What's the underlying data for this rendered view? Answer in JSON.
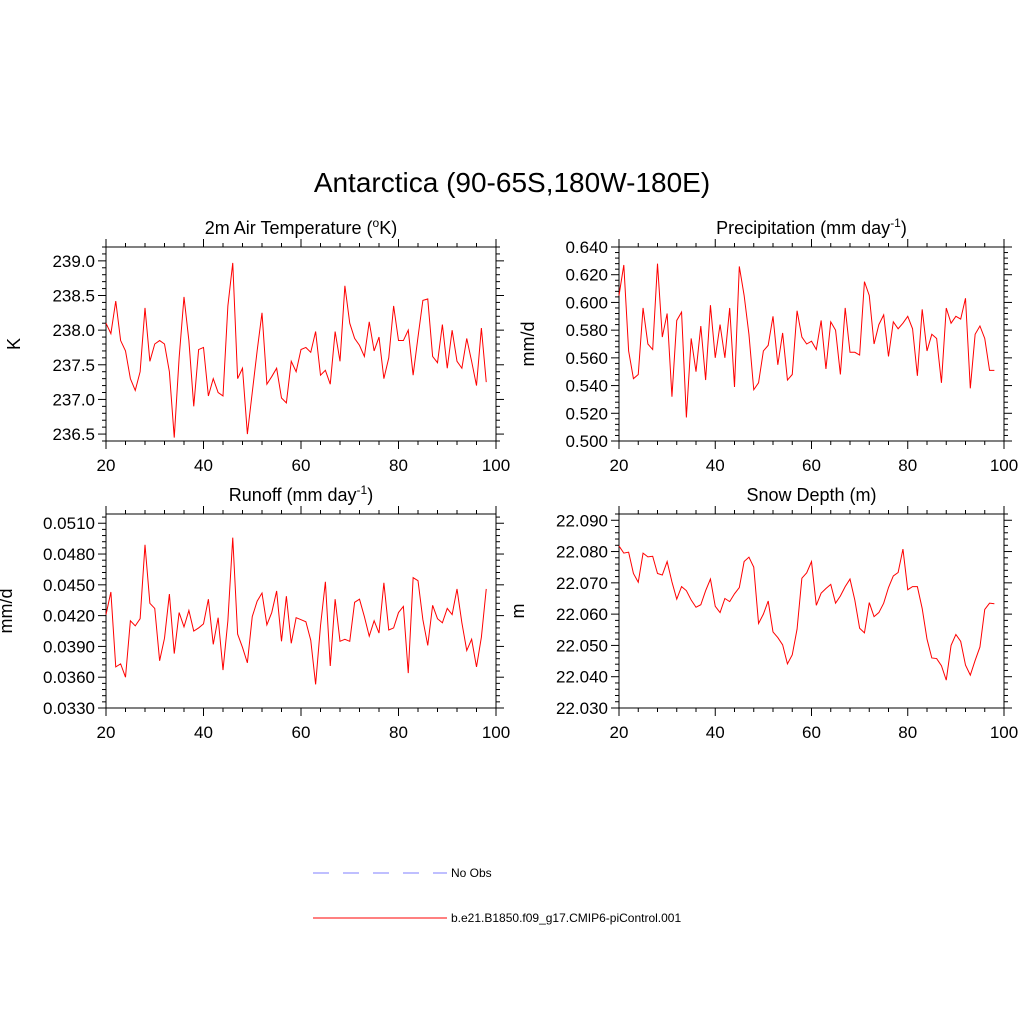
{
  "main_title": "Antarctica (90-65S,180W-180E)",
  "line_color": "#ff0000",
  "obs_color": "#9999ff",
  "legend": {
    "obs": "No Obs",
    "model": "b.e21.B1850.f09_g17.CMIP6-piControl.001"
  },
  "chart_data": [
    {
      "type": "line",
      "title": "2m Air Temperature (",
      "title_sup": "o",
      "title_after": "K)",
      "ylabel": "K",
      "xlabel": "",
      "xlim": [
        20,
        100
      ],
      "ylim": [
        236.4,
        239.2
      ],
      "xticks": [
        20,
        40,
        60,
        80,
        100
      ],
      "yticks": [
        "236.5",
        "237.0",
        "237.5",
        "238.0",
        "238.5",
        "239.0"
      ],
      "ytick_values": [
        236.5,
        237.0,
        237.5,
        238.0,
        238.5,
        239.0
      ],
      "x_start": 20,
      "values": [
        238.1,
        237.95,
        238.42,
        237.85,
        237.7,
        237.3,
        237.13,
        237.4,
        238.32,
        237.55,
        237.8,
        237.85,
        237.8,
        237.4,
        236.45,
        237.6,
        238.48,
        237.85,
        236.9,
        237.72,
        237.75,
        237.05,
        237.3,
        237.1,
        237.05,
        238.35,
        238.97,
        237.3,
        237.45,
        236.5,
        237.1,
        237.7,
        238.25,
        237.22,
        237.33,
        237.45,
        237.02,
        236.95,
        237.55,
        237.4,
        237.72,
        237.75,
        237.68,
        237.98,
        237.35,
        237.42,
        237.22,
        237.98,
        237.55,
        238.64,
        238.1,
        237.88,
        237.78,
        237.62,
        238.12,
        237.7,
        237.9,
        237.3,
        237.6,
        238.35,
        237.85,
        237.85,
        238.0,
        237.35,
        237.9,
        238.43,
        238.45,
        237.62,
        237.53,
        238.08,
        237.45,
        238.0,
        237.55,
        237.45,
        237.88,
        237.55,
        237.2,
        238.03,
        237.25
      ]
    },
    {
      "type": "line",
      "title": "Precipitation (mm day",
      "title_sup": "-1",
      "title_after": ")",
      "ylabel": "mm/d",
      "xlabel": "",
      "xlim": [
        20,
        100
      ],
      "ylim": [
        0.5,
        0.64
      ],
      "xticks": [
        20,
        40,
        60,
        80,
        100
      ],
      "yticks": [
        "0.500",
        "0.520",
        "0.540",
        "0.560",
        "0.580",
        "0.600",
        "0.620",
        "0.640"
      ],
      "ytick_values": [
        0.5,
        0.52,
        0.54,
        0.56,
        0.58,
        0.6,
        0.62,
        0.64
      ],
      "x_start": 20,
      "values": [
        0.605,
        0.627,
        0.565,
        0.545,
        0.548,
        0.596,
        0.57,
        0.566,
        0.628,
        0.575,
        0.592,
        0.532,
        0.587,
        0.593,
        0.517,
        0.574,
        0.55,
        0.583,
        0.544,
        0.598,
        0.56,
        0.584,
        0.56,
        0.596,
        0.539,
        0.626,
        0.605,
        0.577,
        0.537,
        0.542,
        0.565,
        0.569,
        0.59,
        0.555,
        0.578,
        0.544,
        0.548,
        0.594,
        0.575,
        0.57,
        0.572,
        0.566,
        0.587,
        0.552,
        0.586,
        0.58,
        0.548,
        0.596,
        0.564,
        0.564,
        0.562,
        0.615,
        0.605,
        0.57,
        0.584,
        0.591,
        0.561,
        0.586,
        0.581,
        0.585,
        0.59,
        0.581,
        0.547,
        0.595,
        0.565,
        0.577,
        0.574,
        0.542,
        0.596,
        0.585,
        0.59,
        0.588,
        0.603,
        0.538,
        0.577,
        0.583,
        0.574,
        0.551,
        0.551
      ]
    },
    {
      "type": "line",
      "title": "Runoff (mm day",
      "title_sup": "-1",
      "title_after": ")",
      "ylabel": "mm/d",
      "xlabel": "",
      "xlim": [
        20,
        100
      ],
      "ylim": [
        0.033,
        0.0519
      ],
      "xticks": [
        20,
        40,
        60,
        80,
        100
      ],
      "yticks": [
        "0.0330",
        "0.0360",
        "0.0390",
        "0.0420",
        "0.0450",
        "0.0480",
        "0.0510"
      ],
      "ytick_values": [
        0.033,
        0.036,
        0.039,
        0.042,
        0.045,
        0.048,
        0.051
      ],
      "x_start": 20,
      "values": [
        0.0421,
        0.0443,
        0.037,
        0.0373,
        0.036,
        0.0415,
        0.041,
        0.0417,
        0.0489,
        0.0432,
        0.0427,
        0.0376,
        0.0398,
        0.0441,
        0.0383,
        0.0423,
        0.0409,
        0.0425,
        0.0405,
        0.0408,
        0.0412,
        0.0436,
        0.0392,
        0.0418,
        0.0367,
        0.0415,
        0.0496,
        0.0402,
        0.0389,
        0.0374,
        0.0419,
        0.0434,
        0.0442,
        0.0411,
        0.0423,
        0.0444,
        0.0395,
        0.0439,
        0.0393,
        0.0418,
        0.0416,
        0.0414,
        0.0396,
        0.0353,
        0.041,
        0.0453,
        0.0371,
        0.0436,
        0.0395,
        0.0397,
        0.0395,
        0.0433,
        0.0436,
        0.0419,
        0.04,
        0.0415,
        0.0403,
        0.0452,
        0.0406,
        0.0408,
        0.0423,
        0.0429,
        0.0364,
        0.0457,
        0.0454,
        0.0416,
        0.0391,
        0.043,
        0.0417,
        0.0413,
        0.0427,
        0.0421,
        0.0446,
        0.0413,
        0.0386,
        0.0397,
        0.037,
        0.0399,
        0.0446
      ]
    },
    {
      "type": "line",
      "title": "Snow Depth (m)",
      "title_sup": "",
      "title_after": "",
      "ylabel": "m",
      "xlabel": "",
      "xlim": [
        20,
        100
      ],
      "ylim": [
        22.03,
        22.092
      ],
      "xticks": [
        20,
        40,
        60,
        80,
        100
      ],
      "yticks": [
        "22.030",
        "22.040",
        "22.050",
        "22.060",
        "22.070",
        "22.080",
        "22.090"
      ],
      "ytick_values": [
        22.03,
        22.04,
        22.05,
        22.06,
        22.07,
        22.08,
        22.09
      ],
      "x_start": 20,
      "values": [
        22.0818,
        22.0795,
        22.0798,
        22.073,
        22.0702,
        22.0795,
        22.0783,
        22.0785,
        22.073,
        22.0725,
        22.0768,
        22.0703,
        22.0648,
        22.0688,
        22.0675,
        22.0645,
        22.0622,
        22.063,
        22.0675,
        22.0712,
        22.0625,
        22.0605,
        22.065,
        22.064,
        22.0665,
        22.0685,
        22.0768,
        22.0782,
        22.075,
        22.057,
        22.06,
        22.0642,
        22.0543,
        22.0525,
        22.0502,
        22.0441,
        22.047,
        22.0552,
        22.0715,
        22.0732,
        22.0768,
        22.0628,
        22.0667,
        22.0682,
        22.0695,
        22.0635,
        22.0658,
        22.0688,
        22.0712,
        22.0645,
        22.0555,
        22.054,
        22.0637,
        22.0592,
        22.0605,
        22.0635,
        22.0685,
        22.0722,
        22.0733,
        22.0808,
        22.0678,
        22.0688,
        22.0688,
        22.0618,
        22.052,
        22.046,
        22.0458,
        22.0435,
        22.0389,
        22.05,
        22.0535,
        22.0513,
        22.0437,
        22.0405,
        22.0452,
        22.0495,
        22.0615,
        22.0635,
        22.0633
      ]
    }
  ]
}
